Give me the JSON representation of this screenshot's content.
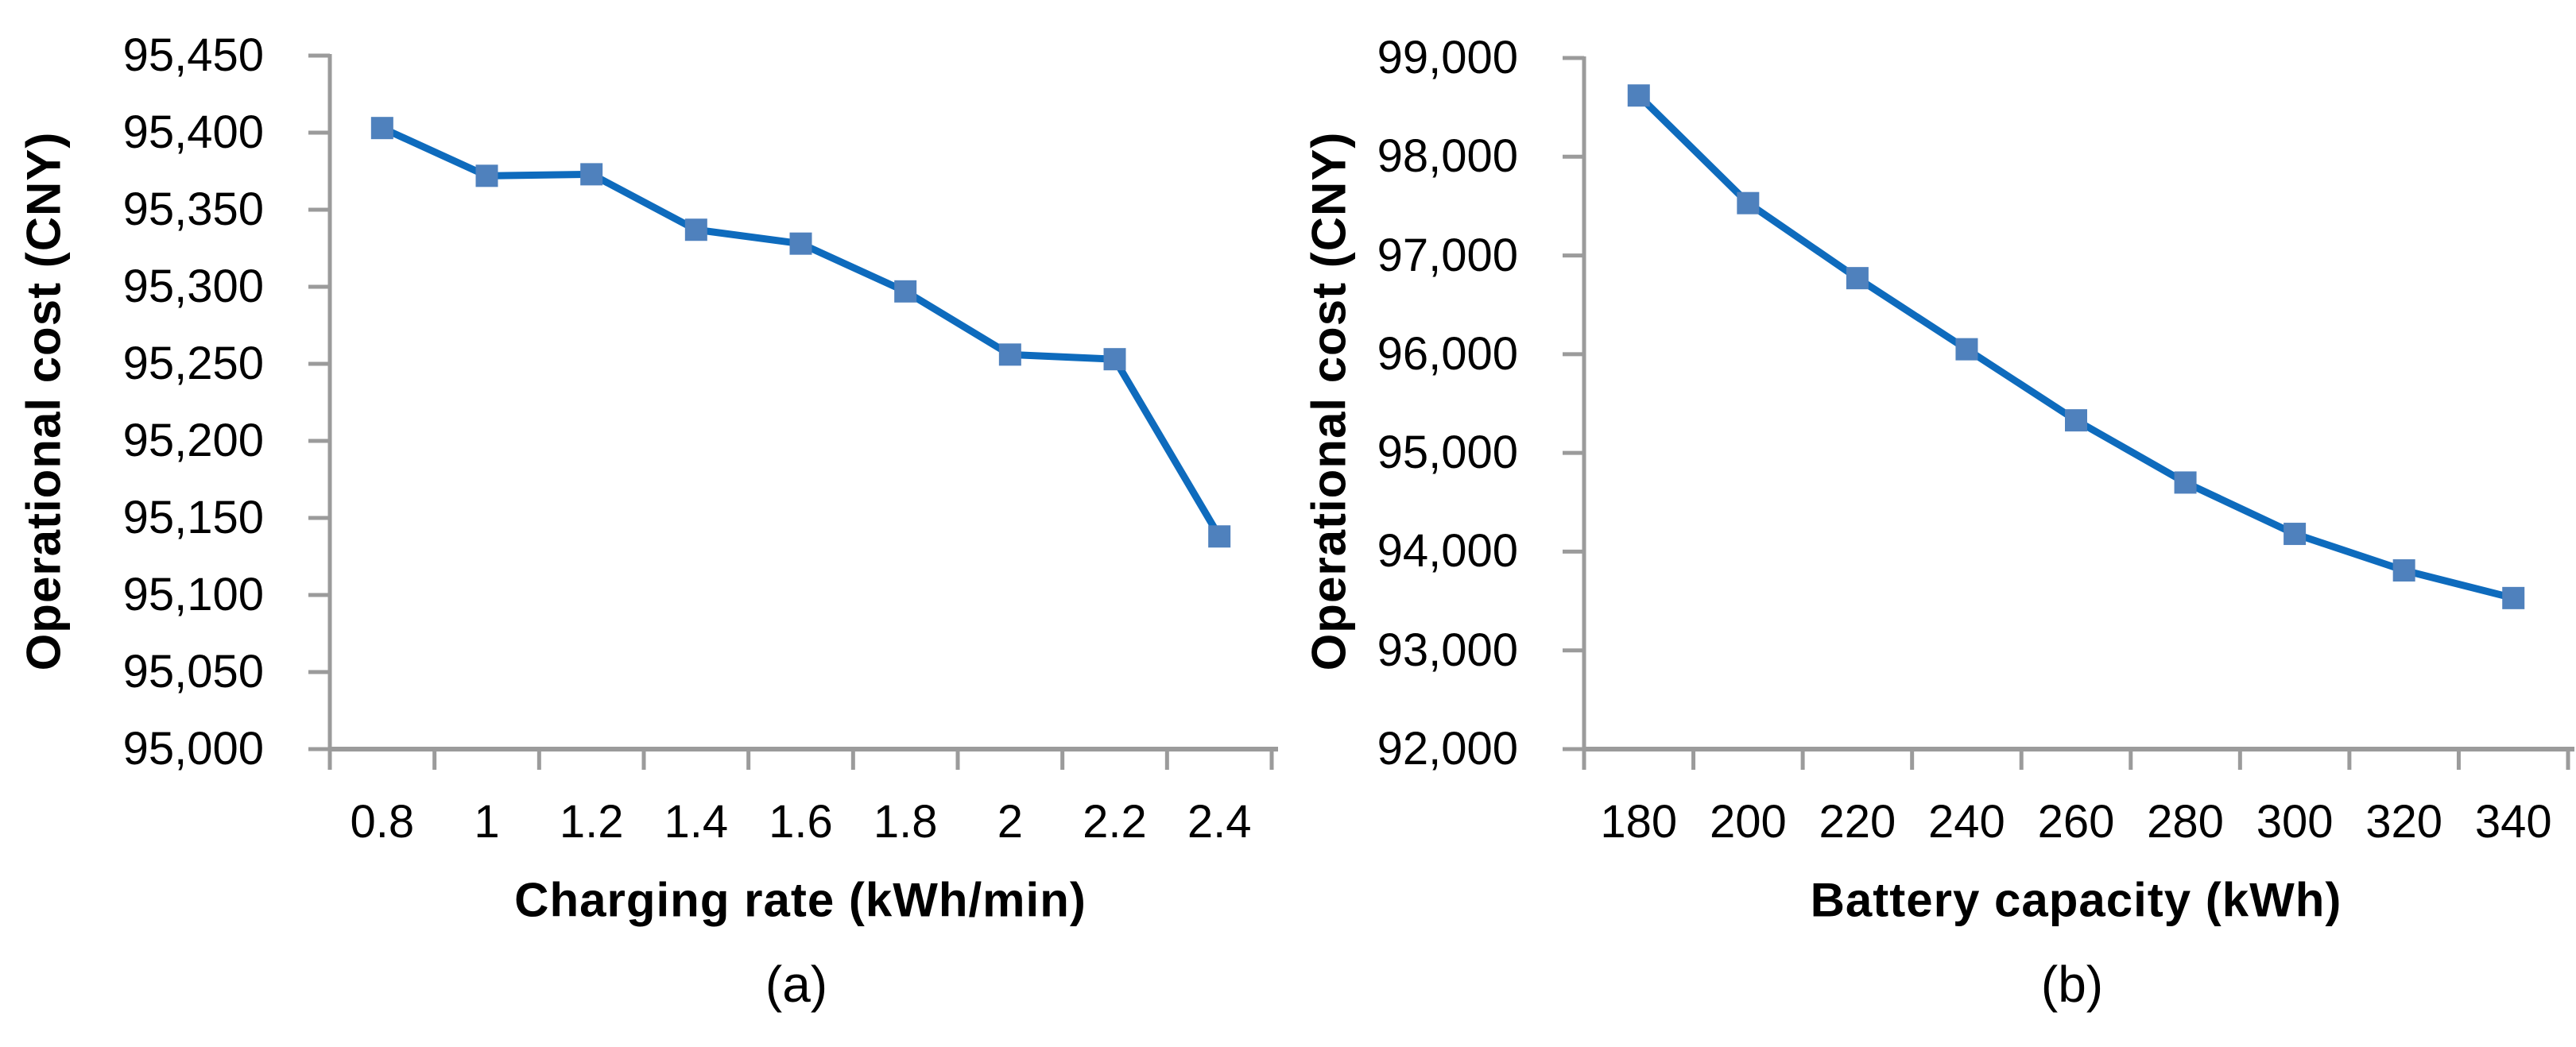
{
  "figure": {
    "background": "#ffffff",
    "panels_count": 2
  },
  "colors": {
    "series_line": "#0e6bbd",
    "marker_fill": "#4f81bd",
    "axis_gray": "#9b9b9b",
    "text": "#000000"
  },
  "chart_data": [
    {
      "type": "line",
      "panel": "a",
      "caption": "(a)",
      "title": "",
      "xlabel": "Charging rate (kWh/min)",
      "ylabel": "Operational cost (CNY)",
      "x": [
        0.8,
        1,
        1.2,
        1.4,
        1.6,
        1.8,
        2,
        2.2,
        2.4
      ],
      "x_tick_labels": [
        "0.8",
        "1",
        "1.2",
        "1.4",
        "1.6",
        "1.8",
        "2",
        "2.2",
        "2.4"
      ],
      "values": [
        95403,
        95372,
        95373,
        95337,
        95328,
        95297,
        95256,
        95253,
        95138
      ],
      "ylim": [
        95000,
        95450
      ],
      "y_tick_step": 50,
      "y_tick_values": [
        95450,
        95400,
        95350,
        95300,
        95250,
        95200,
        95150,
        95100,
        95050,
        95000
      ],
      "y_tick_labels": [
        "95,450",
        "95,400",
        "95,350",
        "95,300",
        "95,250",
        "95,200",
        "95,150",
        "95,100",
        "95,050",
        "95,000"
      ],
      "marker": "square",
      "grid": false,
      "legend": "none"
    },
    {
      "type": "line",
      "panel": "b",
      "caption": "(b)",
      "title": "",
      "xlabel": "Battery capacity (kWh)",
      "ylabel": "Operational cost (CNY)",
      "x": [
        180,
        200,
        220,
        240,
        260,
        280,
        300,
        320,
        340
      ],
      "x_tick_labels": [
        "180",
        "200",
        "220",
        "240",
        "260",
        "280",
        "300",
        "320",
        "340"
      ],
      "values": [
        98620,
        97530,
        96770,
        96050,
        95330,
        94700,
        94180,
        93810,
        93530
      ],
      "ylim": [
        92000,
        99000
      ],
      "y_tick_step": 1000,
      "y_tick_values": [
        99000,
        98000,
        97000,
        96000,
        95000,
        94000,
        93000,
        92000
      ],
      "y_tick_labels": [
        "99,000",
        "98,000",
        "97,000",
        "96,000",
        "95,000",
        "94,000",
        "93,000",
        "92,000"
      ],
      "marker": "square",
      "grid": false,
      "legend": "none"
    }
  ]
}
